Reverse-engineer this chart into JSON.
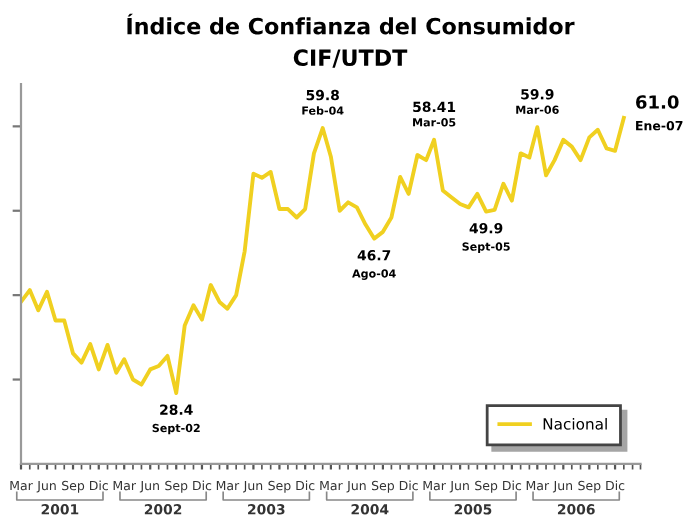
{
  "chart_data": {
    "type": "line",
    "title": "Índice de Confianza del Consumidor",
    "subtitle": "CIF/UTDT",
    "x": [
      "2001-03",
      "2001-04",
      "2001-05",
      "2001-06",
      "2001-07",
      "2001-08",
      "2001-09",
      "2001-10",
      "2001-11",
      "2001-12",
      "2002-01",
      "2002-02",
      "2002-03",
      "2002-04",
      "2002-05",
      "2002-06",
      "2002-07",
      "2002-08",
      "2002-09",
      "2002-10",
      "2002-11",
      "2002-12",
      "2003-01",
      "2003-02",
      "2003-03",
      "2003-04",
      "2003-05",
      "2003-06",
      "2003-07",
      "2003-08",
      "2003-09",
      "2003-10",
      "2003-11",
      "2003-12",
      "2004-01",
      "2004-02",
      "2004-03",
      "2004-04",
      "2004-05",
      "2004-06",
      "2004-07",
      "2004-08",
      "2004-09",
      "2004-10",
      "2004-11",
      "2004-12",
      "2005-01",
      "2005-02",
      "2005-03",
      "2005-04",
      "2005-05",
      "2005-06",
      "2005-07",
      "2005-08",
      "2005-09",
      "2005-10",
      "2005-11",
      "2005-12",
      "2006-01",
      "2006-02",
      "2006-03",
      "2006-04",
      "2006-05",
      "2006-06",
      "2006-07",
      "2006-08",
      "2006-09",
      "2006-10",
      "2006-11",
      "2006-12",
      "2007-01"
    ],
    "series": [
      {
        "name": "Nacional",
        "color": "#f0d020",
        "values": [
          39.2,
          40.6,
          38.2,
          40.4,
          37.0,
          37.0,
          33.1,
          32.0,
          34.2,
          31.2,
          34.1,
          30.8,
          32.4,
          30.0,
          29.4,
          31.2,
          31.6,
          32.8,
          28.4,
          36.4,
          38.8,
          37.1,
          41.2,
          39.2,
          38.4,
          40.0,
          45.2,
          54.4,
          53.9,
          54.6,
          50.2,
          50.2,
          49.2,
          50.2,
          56.8,
          59.8,
          56.4,
          50.0,
          51.0,
          50.4,
          48.4,
          46.7,
          47.5,
          49.2,
          54.0,
          52.0,
          56.6,
          56.0,
          58.41,
          52.4,
          51.6,
          50.8,
          50.4,
          52.0,
          49.9,
          50.1,
          53.2,
          51.2,
          56.8,
          56.3,
          59.9,
          54.2,
          56.0,
          58.4,
          57.6,
          56.0,
          58.7,
          59.6,
          57.4,
          57.1,
          61.0
        ],
        "value_labels": [
          null,
          null,
          null,
          null,
          null,
          null,
          null,
          null,
          null,
          null,
          null,
          null,
          null,
          null,
          null,
          null,
          null,
          null,
          "28.4",
          null,
          null,
          null,
          null,
          null,
          null,
          null,
          null,
          null,
          null,
          null,
          null,
          null,
          null,
          null,
          null,
          "59.8",
          null,
          null,
          null,
          null,
          null,
          "46.7",
          null,
          null,
          null,
          null,
          null,
          null,
          "58.41",
          null,
          null,
          null,
          null,
          null,
          "49.9",
          null,
          null,
          null,
          null,
          null,
          "59.9",
          null,
          null,
          null,
          null,
          null,
          null,
          null,
          null,
          null,
          "61.0"
        ]
      }
    ],
    "annotations": [
      {
        "text": "Sept-02",
        "x": "2002-09",
        "y": 28.4
      },
      {
        "text": "Feb-04",
        "x": "2004-02",
        "y": 59.8
      },
      {
        "text": "Ago-04",
        "x": "2004-08",
        "y": 46.7
      },
      {
        "text": "Mar-05",
        "x": "2005-03",
        "y": 58.41
      },
      {
        "text": "Sept-05",
        "x": "2005-09",
        "y": 49.9
      },
      {
        "text": "Mar-06",
        "x": "2006-03",
        "y": 59.9
      },
      {
        "text": "Ene-07",
        "x": "2007-01",
        "y": 61.0
      },
      "2001",
      "2002",
      "2003",
      "2004",
      "2005",
      "2006"
    ],
    "xlim": [
      "2001-03",
      "2007-03"
    ],
    "xticks": [
      {
        "value": "2001-03",
        "label": "Mar"
      },
      {
        "value": "2001-06",
        "label": "Jun"
      },
      {
        "value": "2001-09",
        "label": "Sep"
      },
      {
        "value": "2001-12",
        "label": "Dic"
      },
      {
        "value": "2002-03",
        "label": "Mar"
      },
      {
        "value": "2002-06",
        "label": "Jun"
      },
      {
        "value": "2002-09",
        "label": "Sep"
      },
      {
        "value": "2002-12",
        "label": "Dic"
      },
      {
        "value": "2003-03",
        "label": "Mar"
      },
      {
        "value": "2003-06",
        "label": "Jun"
      },
      {
        "value": "2003-09",
        "label": "Sep"
      },
      {
        "value": "2003-12",
        "label": "Dic"
      },
      {
        "value": "2004-03",
        "label": "Mar"
      },
      {
        "value": "2004-06",
        "label": "Jun"
      },
      {
        "value": "2004-09",
        "label": "Sep"
      },
      {
        "value": "2004-12",
        "label": "Dic"
      },
      {
        "value": "2005-03",
        "label": "Mar"
      },
      {
        "value": "2005-06",
        "label": "Jun"
      },
      {
        "value": "2005-09",
        "label": "Sep"
      },
      {
        "value": "2005-12",
        "label": "Dic"
      },
      {
        "value": "2006-03",
        "label": "Mar"
      },
      {
        "value": "2006-06",
        "label": "Jun"
      },
      {
        "value": "2006-09",
        "label": "Sep"
      },
      {
        "value": "2006-12",
        "label": "Dic"
      }
    ],
    "ylim": [
      20,
      65
    ],
    "yticks": [
      {
        "value": 30,
        "label": null
      },
      {
        "value": 40,
        "label": null
      },
      {
        "value": 50,
        "label": null
      },
      {
        "value": 60,
        "label": null
      }
    ],
    "grid": false,
    "legend": "bottom right",
    "marker": "none",
    "line_style": "solid"
  }
}
